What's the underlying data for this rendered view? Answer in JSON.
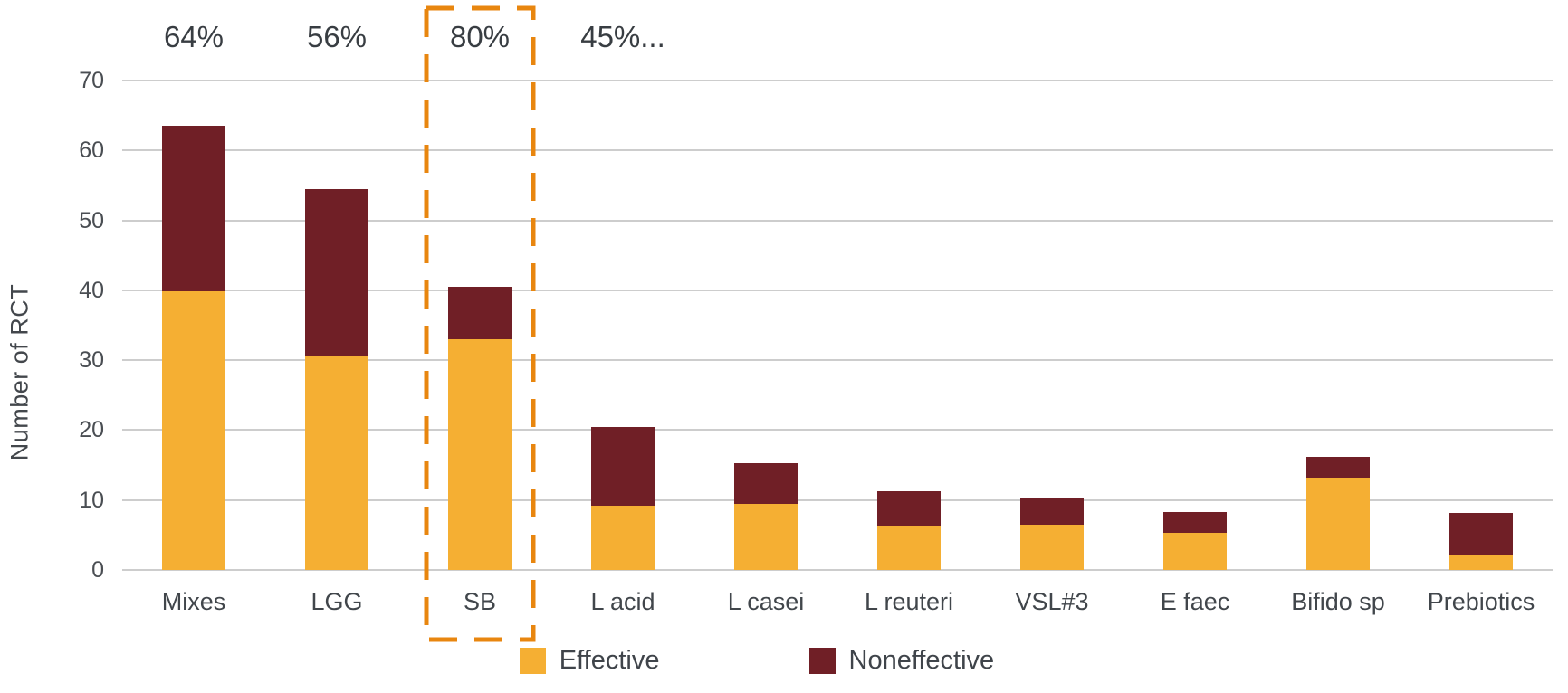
{
  "chart_data": {
    "type": "bar",
    "stacked": true,
    "title": "",
    "xlabel": "",
    "ylabel": "Number of RCT",
    "ylim": [
      0,
      70
    ],
    "yticks": [
      0,
      10,
      20,
      30,
      40,
      50,
      60,
      70
    ],
    "grid": true,
    "legend_position": "bottom",
    "categories": [
      "Mixes",
      "LGG",
      "SB",
      "L acid",
      "L casei",
      "L reuteri",
      "VSL#3",
      "E faec",
      "Bifido sp",
      "Prebiotics"
    ],
    "series": [
      {
        "name": "Effective",
        "color": "#f5af33",
        "values": [
          39.8,
          30.5,
          33.0,
          9.2,
          9.5,
          6.3,
          6.5,
          5.3,
          13.2,
          2.2
        ]
      },
      {
        "name": "Noneffective",
        "color": "#701f26",
        "values": [
          23.7,
          24.0,
          7.5,
          11.3,
          5.8,
          5.0,
          3.7,
          3.0,
          3.0,
          6.0
        ]
      }
    ],
    "bar_annotations": [
      "64%",
      "56%",
      "80%",
      "45%...",
      "",
      "",
      "",
      "",
      "",
      ""
    ],
    "highlight": {
      "category": "SB",
      "shape": "dashed-rectangle",
      "color": "#e8860f"
    }
  },
  "colors": {
    "effective": "#f5af33",
    "noneffective": "#701f26",
    "highlight_dash": "#e8860f",
    "gridline": "#cdcdcd",
    "text": "#41464b"
  }
}
